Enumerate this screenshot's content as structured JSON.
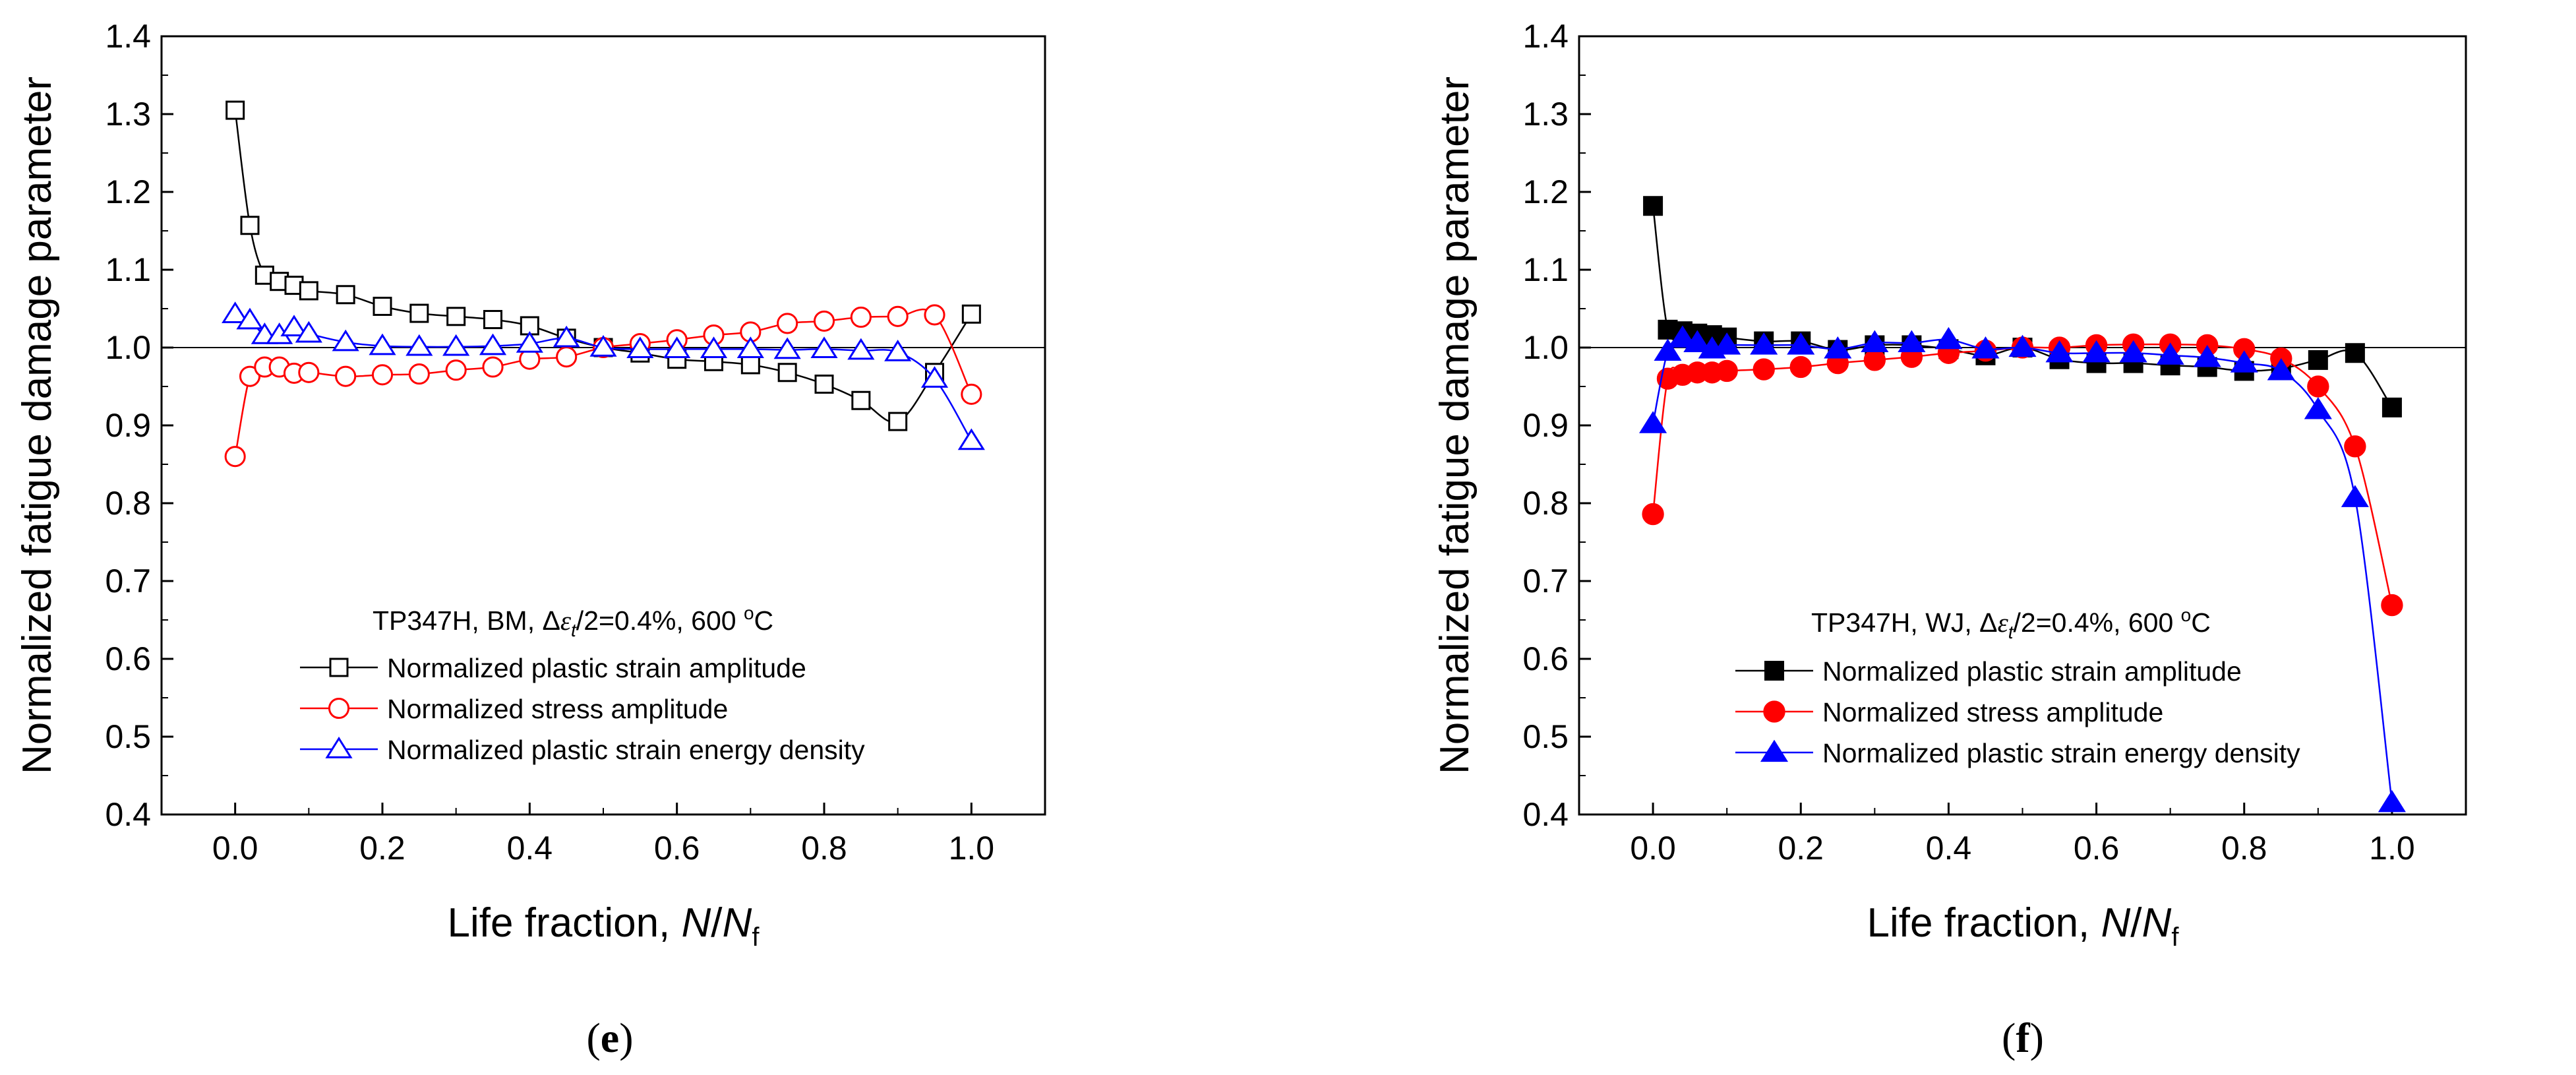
{
  "chart_data": [
    {
      "type": "line",
      "panel": "e",
      "caption_letter": "e",
      "annotation": {
        "prefix": "TP347H, BM, Δ",
        "eps": "ε",
        "sub": "t",
        "suffix": "/2=0.4%, 600 ",
        "deg": "o",
        "unit": "C"
      },
      "xlabel": {
        "text": "Life fraction, ",
        "N": "N",
        "slash": "/",
        "Nf": "N",
        "f": "f"
      },
      "ylabel": "Normalized fatigue damage parameter",
      "xlim": [
        -0.1,
        1.1
      ],
      "ylim": [
        0.4,
        1.4
      ],
      "xticks": [
        "0.0",
        "0.2",
        "0.4",
        "0.6",
        "0.8",
        "1.0"
      ],
      "yticks": [
        "0.4",
        "0.5",
        "0.6",
        "0.7",
        "0.8",
        "0.9",
        "1.0",
        "1.1",
        "1.2",
        "1.3",
        "1.4"
      ],
      "reference_line": 1.0,
      "marker_fill": "none",
      "series": [
        {
          "name": "Normalized plastic strain amplitude",
          "color": "#000000",
          "marker": "square",
          "x": [
            0,
            0.02,
            0.04,
            0.06,
            0.08,
            0.1,
            0.15,
            0.2,
            0.25,
            0.3,
            0.35,
            0.4,
            0.45,
            0.5,
            0.55,
            0.6,
            0.65,
            0.7,
            0.75,
            0.8,
            0.85,
            0.9,
            0.95,
            1.0
          ],
          "y": [
            1.305,
            1.157,
            1.093,
            1.085,
            1.08,
            1.073,
            1.068,
            1.053,
            1.044,
            1.04,
            1.036,
            1.028,
            1.012,
            1.0,
            0.993,
            0.985,
            0.982,
            0.978,
            0.968,
            0.953,
            0.932,
            0.905,
            0.968,
            1.043
          ]
        },
        {
          "name": "Normalized stress amplitude",
          "color": "#ff0000",
          "marker": "circle",
          "x": [
            0,
            0.02,
            0.04,
            0.06,
            0.08,
            0.1,
            0.15,
            0.2,
            0.25,
            0.3,
            0.35,
            0.4,
            0.45,
            0.5,
            0.55,
            0.6,
            0.65,
            0.7,
            0.75,
            0.8,
            0.85,
            0.9,
            0.95,
            1.0
          ],
          "y": [
            0.86,
            0.963,
            0.975,
            0.975,
            0.967,
            0.968,
            0.963,
            0.965,
            0.966,
            0.971,
            0.975,
            0.985,
            0.988,
            1.0,
            1.005,
            1.01,
            1.016,
            1.02,
            1.031,
            1.034,
            1.039,
            1.04,
            1.042,
            0.94
          ]
        },
        {
          "name": "Normalized plastic strain energy density",
          "color": "#0000ff",
          "marker": "triangle",
          "x": [
            0,
            0.02,
            0.04,
            0.06,
            0.08,
            0.1,
            0.15,
            0.2,
            0.25,
            0.3,
            0.35,
            0.4,
            0.45,
            0.5,
            0.55,
            0.6,
            0.65,
            0.7,
            0.75,
            0.8,
            0.85,
            0.9,
            0.95,
            1.0
          ],
          "y": [
            1.043,
            1.035,
            1.016,
            1.016,
            1.026,
            1.018,
            1.007,
            1.002,
            1.001,
            1.001,
            1.002,
            1.005,
            1.012,
            1.0,
            0.998,
            0.998,
            0.998,
            0.998,
            0.997,
            0.998,
            0.996,
            0.994,
            0.96,
            0.88
          ]
        }
      ]
    },
    {
      "type": "line",
      "panel": "f",
      "caption_letter": "f",
      "annotation": {
        "prefix": "TP347H, WJ, Δ",
        "eps": "ε",
        "sub": "t",
        "suffix": "/2=0.4%, 600 ",
        "deg": "o",
        "unit": "C"
      },
      "xlabel": {
        "text": "Life fraction, ",
        "N": "N",
        "slash": "/",
        "Nf": "N",
        "f": "f"
      },
      "ylabel": "Normalized fatigue damage parameter",
      "xlim": [
        -0.1,
        1.1
      ],
      "ylim": [
        0.4,
        1.4
      ],
      "xticks": [
        "0.0",
        "0.2",
        "0.4",
        "0.6",
        "0.8",
        "1.0"
      ],
      "yticks": [
        "0.4",
        "0.5",
        "0.6",
        "0.7",
        "0.8",
        "0.9",
        "1.0",
        "1.1",
        "1.2",
        "1.3",
        "1.4"
      ],
      "reference_line": 1.0,
      "marker_fill": "solid",
      "series": [
        {
          "name": "Normalized plastic strain amplitude",
          "color": "#000000",
          "marker": "square",
          "x": [
            0,
            0.02,
            0.04,
            0.06,
            0.08,
            0.1,
            0.15,
            0.2,
            0.25,
            0.3,
            0.35,
            0.4,
            0.45,
            0.5,
            0.55,
            0.6,
            0.65,
            0.7,
            0.75,
            0.8,
            0.85,
            0.9,
            0.95,
            1.0
          ],
          "y": [
            1.182,
            1.023,
            1.021,
            1.018,
            1.016,
            1.013,
            1.008,
            1.008,
            0.997,
            1.003,
            1.003,
            0.998,
            0.99,
            1.0,
            0.985,
            0.98,
            0.98,
            0.977,
            0.975,
            0.97,
            0.973,
            0.984,
            0.993,
            0.923
          ]
        },
        {
          "name": "Normalized stress amplitude",
          "color": "#ff0000",
          "marker": "circle",
          "x": [
            0,
            0.02,
            0.04,
            0.06,
            0.08,
            0.1,
            0.15,
            0.2,
            0.25,
            0.3,
            0.35,
            0.4,
            0.45,
            0.5,
            0.55,
            0.6,
            0.65,
            0.7,
            0.75,
            0.8,
            0.85,
            0.9,
            0.95,
            1.0
          ],
          "y": [
            0.786,
            0.96,
            0.965,
            0.968,
            0.968,
            0.97,
            0.972,
            0.975,
            0.98,
            0.984,
            0.988,
            0.993,
            0.996,
            1.0,
            1.0,
            1.003,
            1.004,
            1.004,
            1.003,
            0.998,
            0.986,
            0.95,
            0.873,
            0.669
          ]
        },
        {
          "name": "Normalized plastic strain energy density",
          "color": "#0000ff",
          "marker": "triangle",
          "x": [
            0,
            0.02,
            0.04,
            0.06,
            0.08,
            0.1,
            0.15,
            0.2,
            0.25,
            0.3,
            0.35,
            0.4,
            0.45,
            0.5,
            0.55,
            0.6,
            0.65,
            0.7,
            0.75,
            0.8,
            0.85,
            0.9,
            0.95,
            1.0
          ],
          "y": [
            0.902,
            0.995,
            1.012,
            1.006,
            0.998,
            1.003,
            1.003,
            1.003,
            0.998,
            1.006,
            1.006,
            1.01,
            0.998,
            1.0,
            0.993,
            0.993,
            0.993,
            0.99,
            0.987,
            0.98,
            0.97,
            0.92,
            0.807,
            0.415
          ]
        }
      ]
    }
  ]
}
